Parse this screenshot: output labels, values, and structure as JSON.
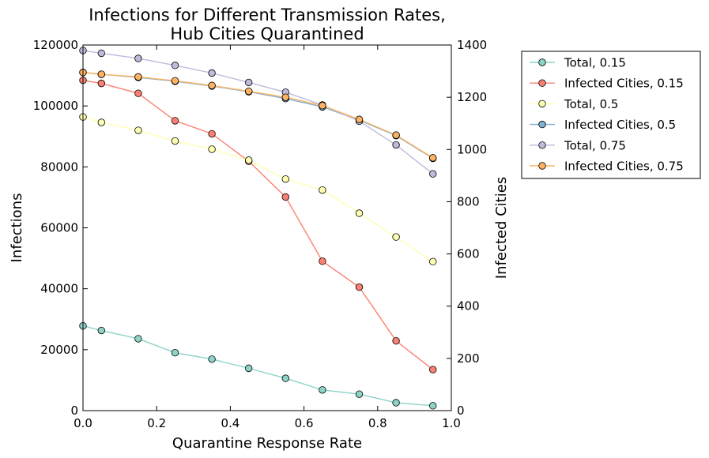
{
  "chart_data": {
    "type": "line",
    "title_lines": [
      "Infections for Different Transmission Rates,",
      "Hub Cities Quarantined"
    ],
    "xlabel": "Quarantine Response Rate",
    "ylabel_left": "Infections",
    "ylabel_right": "Infected Cities",
    "xlim": [
      0.0,
      1.0
    ],
    "ylim_left": [
      0,
      120000
    ],
    "ylim_right": [
      0,
      1400
    ],
    "x_ticks": [
      "0.0",
      "0.2",
      "0.4",
      "0.6",
      "0.8",
      "1.0"
    ],
    "y_left_ticks": [
      "0",
      "20000",
      "40000",
      "60000",
      "80000",
      "100000",
      "120000"
    ],
    "y_right_ticks": [
      "0",
      "200",
      "400",
      "600",
      "800",
      "1000",
      "1200",
      "1400"
    ],
    "x": [
      0.0,
      0.05,
      0.15,
      0.25,
      0.35,
      0.45,
      0.55,
      0.65,
      0.75,
      0.85,
      0.95
    ],
    "grid": false,
    "legend_position": "outside-right",
    "series": [
      {
        "name": "Total, 0.15",
        "axis": "left",
        "color": "#8dd3c7",
        "values": [
          27800,
          26300,
          23600,
          19000,
          16900,
          13900,
          10600,
          6800,
          5400,
          2600,
          1600
        ]
      },
      {
        "name": "Infected Cities, 0.15",
        "axis": "right",
        "color": "#fb8072",
        "values": [
          1265,
          1253,
          1215,
          1110,
          1060,
          955,
          818,
          572,
          473,
          267,
          157
        ]
      },
      {
        "name": "Total, 0.5",
        "axis": "left",
        "color": "#ffffb3",
        "values": [
          96400,
          94600,
          92000,
          88500,
          85800,
          82200,
          76000,
          72400,
          64800,
          57000,
          48900
        ]
      },
      {
        "name": "Infected Cities, 0.5",
        "axis": "right",
        "color": "#80b1d3",
        "values": [
          1295,
          1288,
          1276,
          1261,
          1243,
          1221,
          1195,
          1163,
          1112,
          1053,
          966
        ]
      },
      {
        "name": "Total, 0.75",
        "axis": "left",
        "color": "#bebada",
        "values": [
          118200,
          117300,
          115600,
          113300,
          110800,
          107700,
          104500,
          100300,
          95000,
          87200,
          77700
        ]
      },
      {
        "name": "Infected Cities, 0.75",
        "axis": "right",
        "color": "#fdb462",
        "values": [
          1295,
          1288,
          1278,
          1263,
          1245,
          1223,
          1200,
          1168,
          1115,
          1055,
          968
        ]
      }
    ]
  }
}
